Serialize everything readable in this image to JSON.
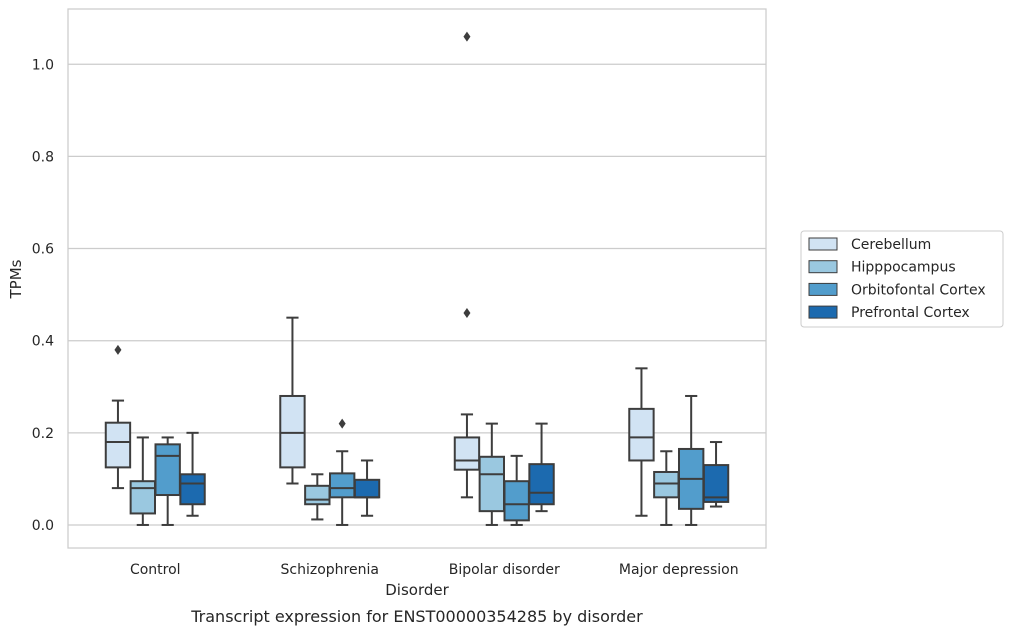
{
  "chart_data": {
    "type": "box",
    "caption": "Transcript expression for ENST00000354285 by disorder",
    "xlabel": "Disorder",
    "ylabel": "TPMs",
    "ylim": [
      -0.05,
      1.12
    ],
    "yticks": [
      "0.0",
      "0.2",
      "0.4",
      "0.6",
      "0.8",
      "1.0"
    ],
    "grid": "horizontal",
    "legend_position": "right",
    "categories": [
      "Control",
      "Schizophrenia",
      "Bipolar disorder",
      "Major depression"
    ],
    "series": [
      {
        "name": "Cerebellum",
        "color": "#d1e3f3",
        "boxes": [
          {
            "q1": 0.125,
            "median": 0.18,
            "q3": 0.222,
            "whisker_low": 0.08,
            "whisker_high": 0.27,
            "outliers": [
              0.38
            ]
          },
          {
            "q1": 0.125,
            "median": 0.2,
            "q3": 0.28,
            "whisker_low": 0.09,
            "whisker_high": 0.45,
            "outliers": []
          },
          {
            "q1": 0.12,
            "median": 0.14,
            "q3": 0.19,
            "whisker_low": 0.06,
            "whisker_high": 0.24,
            "outliers": [
              0.46,
              1.06
            ]
          },
          {
            "q1": 0.14,
            "median": 0.19,
            "q3": 0.252,
            "whisker_low": 0.02,
            "whisker_high": 0.34,
            "outliers": []
          }
        ]
      },
      {
        "name": "Hipppocampus",
        "color": "#9ac8e0",
        "boxes": [
          {
            "q1": 0.025,
            "median": 0.08,
            "q3": 0.095,
            "whisker_low": 0.0,
            "whisker_high": 0.19,
            "outliers": []
          },
          {
            "q1": 0.045,
            "median": 0.055,
            "q3": 0.085,
            "whisker_low": 0.012,
            "whisker_high": 0.11,
            "outliers": []
          },
          {
            "q1": 0.03,
            "median": 0.11,
            "q3": 0.148,
            "whisker_low": 0.0,
            "whisker_high": 0.22,
            "outliers": []
          },
          {
            "q1": 0.06,
            "median": 0.09,
            "q3": 0.115,
            "whisker_low": 0.0,
            "whisker_high": 0.16,
            "outliers": []
          }
        ]
      },
      {
        "name": "Orbitofontal Cortex",
        "color": "#529dcc",
        "boxes": [
          {
            "q1": 0.065,
            "median": 0.15,
            "q3": 0.175,
            "whisker_low": 0.0,
            "whisker_high": 0.19,
            "outliers": []
          },
          {
            "q1": 0.06,
            "median": 0.08,
            "q3": 0.112,
            "whisker_low": 0.0,
            "whisker_high": 0.16,
            "outliers": [
              0.22
            ]
          },
          {
            "q1": 0.01,
            "median": 0.045,
            "q3": 0.095,
            "whisker_low": 0.0,
            "whisker_high": 0.15,
            "outliers": []
          },
          {
            "q1": 0.035,
            "median": 0.1,
            "q3": 0.165,
            "whisker_low": 0.0,
            "whisker_high": 0.28,
            "outliers": []
          }
        ]
      },
      {
        "name": "Prefrontal Cortex",
        "color": "#1c6aaf",
        "boxes": [
          {
            "q1": 0.045,
            "median": 0.09,
            "q3": 0.11,
            "whisker_low": 0.02,
            "whisker_high": 0.2,
            "outliers": []
          },
          {
            "q1": 0.06,
            "median": 0.06,
            "q3": 0.098,
            "whisker_low": 0.02,
            "whisker_high": 0.14,
            "outliers": []
          },
          {
            "q1": 0.045,
            "median": 0.07,
            "q3": 0.132,
            "whisker_low": 0.03,
            "whisker_high": 0.22,
            "outliers": []
          },
          {
            "q1": 0.05,
            "median": 0.06,
            "q3": 0.13,
            "whisker_low": 0.04,
            "whisker_high": 0.18,
            "outliers": []
          }
        ]
      }
    ]
  }
}
